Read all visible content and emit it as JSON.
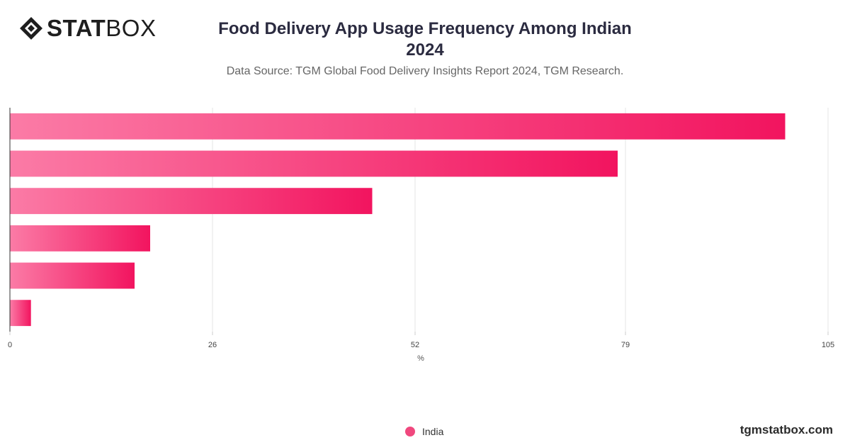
{
  "brand": {
    "logo_strong": "STAT",
    "logo_light": "BOX",
    "watermark": "tgmstatbox.com"
  },
  "colors": {
    "bar_start": "#fb7ba6",
    "bar_end": "#f2145f",
    "grid": "#e4e4e4",
    "axis": "#333333",
    "legend_dot": "#f0487e"
  },
  "chart_data": {
    "type": "bar",
    "orientation": "horizontal",
    "title_line1": "Food Delivery App Usage Frequency Among Indian",
    "title_line2": "2024",
    "subtitle": "Data Source: TGM Global Food Delivery Insights Report 2024, TGM Research.",
    "xlabel": "%",
    "ylabel": "",
    "xlim": [
      0,
      105
    ],
    "xticks": [
      0,
      26,
      52,
      79,
      105
    ],
    "grid": true,
    "legend_position": "bottom-center",
    "categories": [
      "",
      "",
      "",
      "",
      "",
      ""
    ],
    "series": [
      {
        "name": "India",
        "values": [
          99.5,
          78,
          46.5,
          18,
          16,
          2.7
        ]
      }
    ]
  }
}
